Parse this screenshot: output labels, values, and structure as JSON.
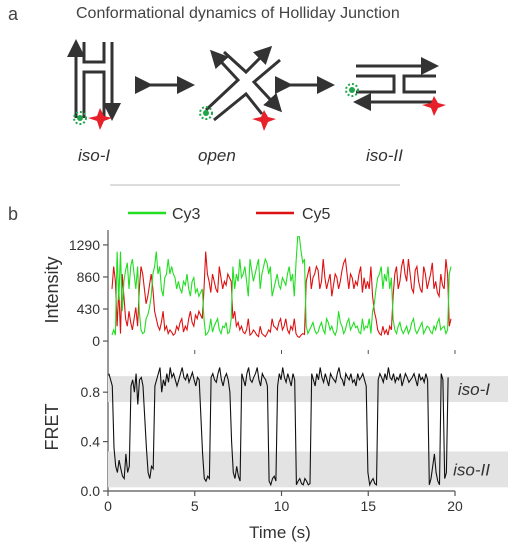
{
  "panel_a": {
    "letter": "a",
    "title": "Conformational dynamics of Holliday Junction",
    "states": [
      "iso-I",
      "open",
      "iso-II"
    ]
  },
  "panel_b": {
    "letter": "b",
    "legend": [
      {
        "name": "Cy3",
        "color": "#22dd22"
      },
      {
        "name": "Cy5",
        "color": "#dd1111"
      }
    ]
  },
  "colors": {
    "cy3": "#22dd22",
    "cy5": "#dd1111",
    "fret": "#111111",
    "band": "#e3e3e3",
    "dna": "#333333",
    "donor_star": "#1fa64a",
    "acceptor_star": "#e8202a"
  },
  "chart_data": [
    {
      "type": "line",
      "ylabel": "Intensity",
      "yticks": [
        0,
        430,
        860,
        1290
      ],
      "ylim": [
        -120,
        1450
      ],
      "xlim": [
        0,
        20
      ],
      "series": [
        {
          "name": "Cy3",
          "color": "#22dd22",
          "values": [
            80,
            150,
            80,
            1200,
            550,
            1200,
            400,
            800,
            950,
            1050,
            700,
            1000,
            1100,
            900,
            700,
            1000,
            400,
            150,
            100,
            120,
            300,
            350,
            450,
            600,
            900,
            1000,
            1200,
            900,
            1000,
            700,
            600,
            850,
            900,
            1100,
            900,
            1000,
            900,
            850,
            700,
            800,
            700,
            650,
            800,
            750,
            900,
            700,
            600,
            800,
            850,
            650,
            700,
            600,
            650,
            700,
            300,
            80,
            100,
            150,
            300,
            120,
            200,
            250,
            300,
            150,
            100,
            200,
            180,
            250,
            100,
            120,
            300,
            1000,
            700,
            900,
            800,
            1100,
            850,
            900,
            1000,
            800,
            600,
            1100,
            950,
            800,
            900,
            1000,
            1100,
            700,
            900,
            1000,
            1100,
            1050,
            900,
            1000,
            600,
            700,
            800,
            900,
            750,
            700,
            850,
            800,
            750,
            900,
            1000,
            800,
            900,
            600,
            1050,
            1400,
            1400,
            1200,
            1050,
            1100,
            200,
            100,
            150,
            200,
            250,
            150,
            100,
            120,
            200,
            250,
            150,
            100,
            300,
            250,
            150,
            200,
            120,
            80,
            150,
            400,
            250,
            200,
            100,
            150,
            250,
            300,
            150,
            200,
            250,
            180,
            200,
            120,
            100,
            300,
            150,
            200,
            180,
            300,
            100,
            400,
            500,
            700,
            850,
            900,
            1000,
            700,
            900,
            800,
            1000,
            700,
            850,
            300,
            150,
            100,
            200,
            250,
            150,
            100,
            150,
            200,
            100,
            150,
            250,
            300,
            150,
            100,
            150,
            200,
            250,
            100,
            150,
            200,
            180,
            120,
            100,
            200,
            150,
            250,
            300,
            150,
            180,
            200,
            100,
            150,
            900,
            1000
          ]
        },
        {
          "name": "Cy5",
          "color": "#dd1111",
          "values": [
            700,
            1000,
            800,
            200,
            700,
            100,
            900,
            600,
            300,
            200,
            400,
            250,
            150,
            300,
            450,
            200,
            700,
            1000,
            900,
            700,
            500,
            600,
            750,
            900,
            700,
            400,
            300,
            200,
            150,
            250,
            400,
            150,
            200,
            100,
            150,
            120,
            80,
            100,
            200,
            150,
            250,
            300,
            120,
            200,
            150,
            300,
            400,
            250,
            200,
            350,
            300,
            400,
            350,
            300,
            700,
            1200,
            900,
            800,
            650,
            900,
            800,
            700,
            650,
            1000,
            850,
            700,
            800,
            750,
            900,
            850,
            800,
            300,
            400,
            200,
            250,
            150,
            200,
            120,
            100,
            150,
            300,
            80,
            100,
            150,
            120,
            80,
            60,
            200,
            100,
            80,
            60,
            100,
            150,
            120,
            300,
            200,
            180,
            150,
            250,
            300,
            150,
            200,
            300,
            150,
            100,
            200,
            150,
            300,
            100,
            60,
            50,
            80,
            100,
            90,
            800,
            900,
            1000,
            700,
            850,
            900,
            1000,
            950,
            700,
            800,
            1100,
            850,
            700,
            800,
            900,
            600,
            750,
            900,
            850,
            700,
            800,
            950,
            1050,
            1100,
            900,
            700,
            900,
            850,
            700,
            800,
            750,
            900,
            1000,
            650,
            850,
            700,
            800,
            700,
            1000,
            600,
            400,
            300,
            150,
            100,
            80,
            200,
            100,
            150,
            80,
            200,
            150,
            600,
            900,
            1000,
            700,
            800,
            1000,
            1100,
            900,
            800,
            1100,
            900,
            700,
            650,
            950,
            1000,
            800,
            700,
            650,
            1000,
            900,
            700,
            800,
            900,
            1050,
            700,
            800,
            650,
            600,
            900,
            750,
            700,
            1100,
            900,
            200,
            300
          ]
        }
      ]
    },
    {
      "type": "line",
      "xlabel": "Time (s)",
      "ylabel": "FRET",
      "xticks": [
        0,
        5,
        10,
        15,
        20
      ],
      "yticks": [
        0.0,
        0.4,
        0.8
      ],
      "ylim": [
        0,
        1.02
      ],
      "xlim": [
        0,
        20
      ],
      "bands": [
        {
          "label": "iso-I",
          "range": [
            0.72,
            0.93
          ]
        },
        {
          "label": "iso-II",
          "range": [
            0.03,
            0.32
          ]
        }
      ],
      "series": [
        {
          "name": "FRET",
          "color": "#111111",
          "values": [
            0.95,
            0.9,
            0.85,
            0.35,
            0.2,
            0.15,
            0.25,
            0.18,
            0.12,
            0.1,
            0.3,
            0.15,
            0.2,
            0.85,
            0.9,
            0.8,
            0.95,
            0.7,
            0.9,
            0.92,
            0.85,
            0.6,
            0.35,
            0.15,
            0.1,
            0.2,
            0.18,
            0.85,
            0.9,
            0.95,
            1.0,
            0.8,
            0.9,
            0.85,
            0.95,
            0.88,
            1.0,
            0.92,
            0.95,
            0.9,
            0.85,
            0.9,
            0.95,
            1.0,
            0.92,
            0.9,
            0.95,
            0.88,
            0.92,
            0.96,
            0.9,
            0.85,
            0.92,
            0.9,
            0.6,
            0.3,
            0.1,
            0.08,
            0.12,
            0.1,
            0.92,
            0.95,
            0.9,
            0.88,
            0.95,
            1.0,
            0.9,
            0.85,
            0.92,
            0.95,
            0.9,
            0.8,
            0.4,
            0.15,
            0.1,
            0.2,
            0.12,
            0.08,
            0.95,
            0.9,
            0.85,
            0.95,
            1.0,
            0.9,
            0.88,
            0.92,
            0.95,
            1.0,
            0.9,
            0.85,
            0.95,
            0.92,
            0.9,
            0.85,
            0.08,
            0.05,
            0.1,
            0.12,
            0.08,
            0.85,
            0.95,
            0.9,
            1.0,
            0.92,
            0.88,
            0.95,
            0.9,
            0.85,
            0.95,
            0.9,
            0.05,
            0.08,
            0.1,
            0.06,
            0.05,
            0.1,
            0.08,
            0.05,
            0.06,
            0.95,
            0.9,
            0.85,
            0.95,
            0.9,
            1.0,
            0.92,
            0.88,
            0.95,
            0.9,
            0.85,
            0.95,
            0.92,
            0.9,
            0.88,
            0.95,
            1.0,
            0.92,
            0.9,
            0.85,
            0.95,
            0.92,
            0.9,
            0.95,
            0.88,
            0.9,
            0.85,
            0.95,
            0.9,
            0.92,
            0.95,
            0.9,
            0.85,
            0.15,
            0.05,
            0.08,
            0.1,
            0.06,
            0.05,
            0.9,
            0.95,
            0.92,
            0.88,
            0.95,
            0.9,
            1.0,
            0.92,
            0.9,
            0.95,
            0.88,
            0.92,
            0.9,
            0.95,
            0.85,
            0.9,
            0.95,
            0.92,
            0.88,
            0.9,
            0.92,
            0.95,
            0.9,
            0.85,
            0.95,
            0.9,
            0.92,
            0.88,
            0.95,
            0.9,
            0.05,
            0.1,
            0.2,
            0.3,
            0.15,
            0.08,
            0.05,
            0.95,
            0.9,
            0.1,
            0.15,
            0.92
          ]
        }
      ]
    }
  ]
}
